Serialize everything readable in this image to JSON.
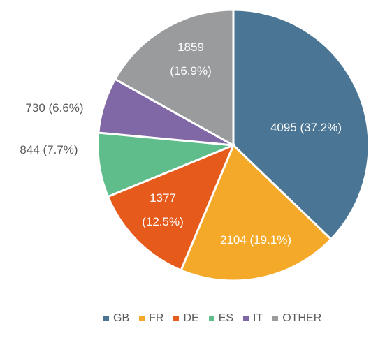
{
  "chart_data": {
    "type": "pie",
    "categories": [
      "GB",
      "FR",
      "DE",
      "ES",
      "IT",
      "OTHER"
    ],
    "values": [
      4095,
      2104,
      1377,
      844,
      730,
      1859
    ],
    "value_labels": [
      "4095 (37.2%)",
      "2104 (19.1%)",
      "1377 (12.5%)",
      "844 (7.7%)",
      "730 (6.6%)",
      "1859 (16.9%)"
    ],
    "colors": [
      "#4a7594",
      "#f5a929",
      "#e65a1b",
      "#5ebd8b",
      "#8068a7",
      "#9a9b9d"
    ],
    "legend": "bottom"
  }
}
